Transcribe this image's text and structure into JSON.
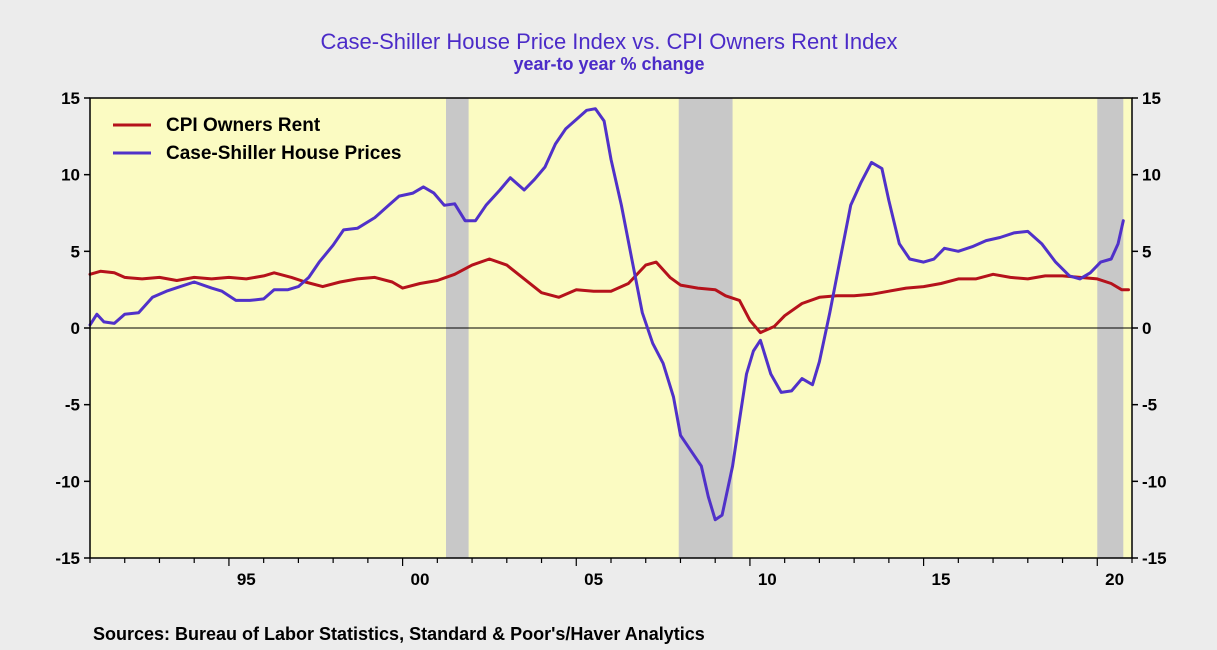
{
  "chart_data": {
    "type": "line",
    "title": "Case-Shiller House Price Index vs. CPI Owners Rent Index",
    "subtitle": "year-to year % change",
    "source": "Sources:  Bureau of Labor Statistics, Standard & Poor's/Haver Analytics",
    "xlim": [
      1991.0,
      2021.0
    ],
    "ylim": [
      -15,
      15
    ],
    "y_ticks": [
      15,
      10,
      5,
      0,
      -5,
      -10,
      -15
    ],
    "y_tick_labels": [
      "15",
      "10",
      "5",
      "0",
      "-5",
      "-10",
      "-15"
    ],
    "x_tick_labels": [
      {
        "x": 1995,
        "label": "95"
      },
      {
        "x": 2000,
        "label": "00"
      },
      {
        "x": 2005,
        "label": "05"
      },
      {
        "x": 2010,
        "label": "10"
      },
      {
        "x": 2015,
        "label": "15"
      },
      {
        "x": 2020,
        "label": "20"
      }
    ],
    "recessions": [
      [
        2001.25,
        2001.9
      ],
      [
        2007.95,
        2009.5
      ],
      [
        2020.0,
        2020.75
      ]
    ],
    "legend": [
      "CPI Owners Rent",
      "Case-Shiller House Prices"
    ],
    "colors": {
      "plot_bg": "#fbfbc2",
      "recession": "#c8c8c8",
      "cpi": "#b5121b",
      "case_shiller": "#5031c9",
      "title": "#4b2bc8"
    },
    "series": [
      {
        "name": "CPI Owners Rent",
        "color": "#b5121b",
        "points": [
          [
            1991.0,
            3.5
          ],
          [
            1991.3,
            3.7
          ],
          [
            1991.7,
            3.6
          ],
          [
            1992.0,
            3.3
          ],
          [
            1992.5,
            3.2
          ],
          [
            1993.0,
            3.3
          ],
          [
            1993.5,
            3.1
          ],
          [
            1994.0,
            3.3
          ],
          [
            1994.5,
            3.2
          ],
          [
            1995.0,
            3.3
          ],
          [
            1995.5,
            3.2
          ],
          [
            1996.0,
            3.4
          ],
          [
            1996.3,
            3.6
          ],
          [
            1996.8,
            3.3
          ],
          [
            1997.2,
            3.0
          ],
          [
            1997.7,
            2.7
          ],
          [
            1998.2,
            3.0
          ],
          [
            1998.7,
            3.2
          ],
          [
            1999.2,
            3.3
          ],
          [
            1999.7,
            3.0
          ],
          [
            2000.0,
            2.6
          ],
          [
            2000.5,
            2.9
          ],
          [
            2001.0,
            3.1
          ],
          [
            2001.5,
            3.5
          ],
          [
            2002.0,
            4.1
          ],
          [
            2002.5,
            4.5
          ],
          [
            2003.0,
            4.1
          ],
          [
            2003.5,
            3.2
          ],
          [
            2004.0,
            2.3
          ],
          [
            2004.5,
            2.0
          ],
          [
            2005.0,
            2.5
          ],
          [
            2005.5,
            2.4
          ],
          [
            2006.0,
            2.4
          ],
          [
            2006.5,
            2.9
          ],
          [
            2007.0,
            4.1
          ],
          [
            2007.3,
            4.3
          ],
          [
            2007.7,
            3.3
          ],
          [
            2008.0,
            2.8
          ],
          [
            2008.5,
            2.6
          ],
          [
            2009.0,
            2.5
          ],
          [
            2009.3,
            2.1
          ],
          [
            2009.7,
            1.8
          ],
          [
            2010.0,
            0.5
          ],
          [
            2010.3,
            -0.3
          ],
          [
            2010.7,
            0.1
          ],
          [
            2011.0,
            0.8
          ],
          [
            2011.5,
            1.6
          ],
          [
            2012.0,
            2.0
          ],
          [
            2012.5,
            2.1
          ],
          [
            2013.0,
            2.1
          ],
          [
            2013.5,
            2.2
          ],
          [
            2014.0,
            2.4
          ],
          [
            2014.5,
            2.6
          ],
          [
            2015.0,
            2.7
          ],
          [
            2015.5,
            2.9
          ],
          [
            2016.0,
            3.2
          ],
          [
            2016.5,
            3.2
          ],
          [
            2017.0,
            3.5
          ],
          [
            2017.5,
            3.3
          ],
          [
            2018.0,
            3.2
          ],
          [
            2018.5,
            3.4
          ],
          [
            2019.0,
            3.4
          ],
          [
            2019.5,
            3.3
          ],
          [
            2020.0,
            3.2
          ],
          [
            2020.4,
            2.9
          ],
          [
            2020.7,
            2.5
          ],
          [
            2020.9,
            2.5
          ]
        ]
      },
      {
        "name": "Case-Shiller House Prices",
        "color": "#5031c9",
        "points": [
          [
            1991.0,
            0.2
          ],
          [
            1991.2,
            0.9
          ],
          [
            1991.4,
            0.4
          ],
          [
            1991.7,
            0.3
          ],
          [
            1992.0,
            0.9
          ],
          [
            1992.4,
            1.0
          ],
          [
            1992.8,
            2.0
          ],
          [
            1993.2,
            2.4
          ],
          [
            1993.6,
            2.7
          ],
          [
            1994.0,
            3.0
          ],
          [
            1994.5,
            2.6
          ],
          [
            1994.8,
            2.4
          ],
          [
            1995.2,
            1.8
          ],
          [
            1995.6,
            1.8
          ],
          [
            1996.0,
            1.9
          ],
          [
            1996.3,
            2.5
          ],
          [
            1996.7,
            2.5
          ],
          [
            1997.0,
            2.7
          ],
          [
            1997.3,
            3.3
          ],
          [
            1997.6,
            4.3
          ],
          [
            1998.0,
            5.4
          ],
          [
            1998.3,
            6.4
          ],
          [
            1998.7,
            6.5
          ],
          [
            1999.2,
            7.2
          ],
          [
            1999.6,
            8.0
          ],
          [
            1999.9,
            8.6
          ],
          [
            2000.3,
            8.8
          ],
          [
            2000.6,
            9.2
          ],
          [
            2000.9,
            8.8
          ],
          [
            2001.2,
            8.0
          ],
          [
            2001.5,
            8.1
          ],
          [
            2001.8,
            7.0
          ],
          [
            2002.1,
            7.0
          ],
          [
            2002.4,
            8.0
          ],
          [
            2002.8,
            9.0
          ],
          [
            2003.1,
            9.8
          ],
          [
            2003.5,
            9.0
          ],
          [
            2003.8,
            9.7
          ],
          [
            2004.1,
            10.5
          ],
          [
            2004.4,
            12.0
          ],
          [
            2004.7,
            13.0
          ],
          [
            2005.0,
            13.6
          ],
          [
            2005.3,
            14.2
          ],
          [
            2005.55,
            14.3
          ],
          [
            2005.8,
            13.5
          ],
          [
            2006.0,
            11.0
          ],
          [
            2006.3,
            8.0
          ],
          [
            2006.6,
            4.5
          ],
          [
            2006.9,
            1.0
          ],
          [
            2007.2,
            -1.0
          ],
          [
            2007.5,
            -2.3
          ],
          [
            2007.8,
            -4.5
          ],
          [
            2008.0,
            -7.0
          ],
          [
            2008.3,
            -8.0
          ],
          [
            2008.6,
            -9.0
          ],
          [
            2008.8,
            -11.0
          ],
          [
            2009.0,
            -12.5
          ],
          [
            2009.2,
            -12.2
          ],
          [
            2009.5,
            -9.0
          ],
          [
            2009.7,
            -6.0
          ],
          [
            2009.9,
            -3.0
          ],
          [
            2010.1,
            -1.5
          ],
          [
            2010.3,
            -0.8
          ],
          [
            2010.6,
            -3.0
          ],
          [
            2010.9,
            -4.2
          ],
          [
            2011.2,
            -4.1
          ],
          [
            2011.5,
            -3.3
          ],
          [
            2011.8,
            -3.7
          ],
          [
            2012.0,
            -2.2
          ],
          [
            2012.3,
            1.0
          ],
          [
            2012.6,
            4.5
          ],
          [
            2012.9,
            8.0
          ],
          [
            2013.2,
            9.5
          ],
          [
            2013.5,
            10.8
          ],
          [
            2013.8,
            10.4
          ],
          [
            2014.0,
            8.3
          ],
          [
            2014.3,
            5.5
          ],
          [
            2014.6,
            4.5
          ],
          [
            2015.0,
            4.3
          ],
          [
            2015.3,
            4.5
          ],
          [
            2015.6,
            5.2
          ],
          [
            2016.0,
            5.0
          ],
          [
            2016.4,
            5.3
          ],
          [
            2016.8,
            5.7
          ],
          [
            2017.2,
            5.9
          ],
          [
            2017.6,
            6.2
          ],
          [
            2018.0,
            6.3
          ],
          [
            2018.4,
            5.5
          ],
          [
            2018.8,
            4.3
          ],
          [
            2019.2,
            3.4
          ],
          [
            2019.5,
            3.2
          ],
          [
            2019.8,
            3.6
          ],
          [
            2020.1,
            4.3
          ],
          [
            2020.4,
            4.5
          ],
          [
            2020.6,
            5.5
          ],
          [
            2020.75,
            7.0
          ]
        ]
      }
    ]
  }
}
